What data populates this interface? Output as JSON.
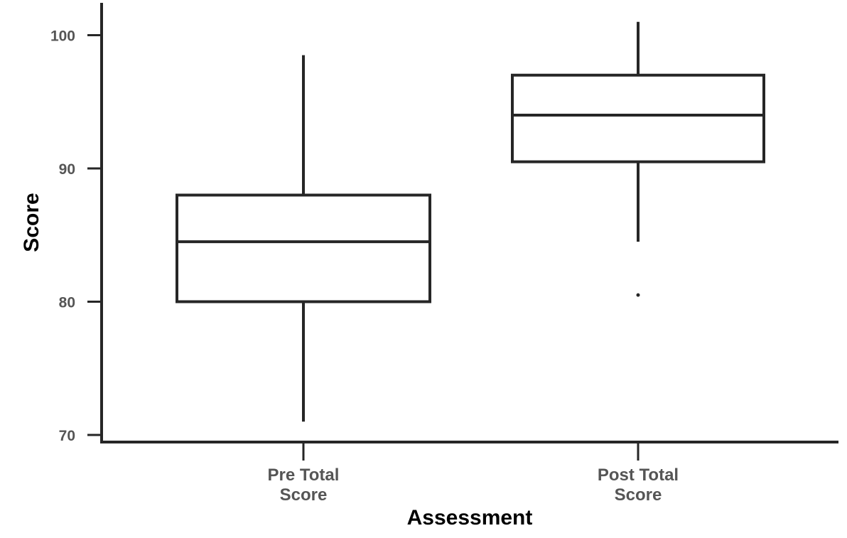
{
  "chart_data": {
    "type": "box",
    "xlabel": "Assessment",
    "ylabel": "Score",
    "ylim": [
      70,
      102.5
    ],
    "yticks": [
      70,
      80,
      90,
      100
    ],
    "categories": [
      [
        "Pre Total",
        "Score"
      ],
      [
        "Post Total",
        "Score"
      ]
    ],
    "boxes": [
      {
        "whisker_low": 71,
        "q1": 80,
        "median": 84.5,
        "q3": 88,
        "whisker_high": 98.5,
        "outliers": []
      },
      {
        "whisker_low": 84.5,
        "q1": 90.5,
        "median": 94,
        "q3": 97,
        "whisker_high": 101,
        "outliers": [
          80.5
        ]
      }
    ],
    "grid": false,
    "colors": {
      "stroke": "#262626",
      "ticklabel": "#555555",
      "title": "#000000"
    }
  }
}
